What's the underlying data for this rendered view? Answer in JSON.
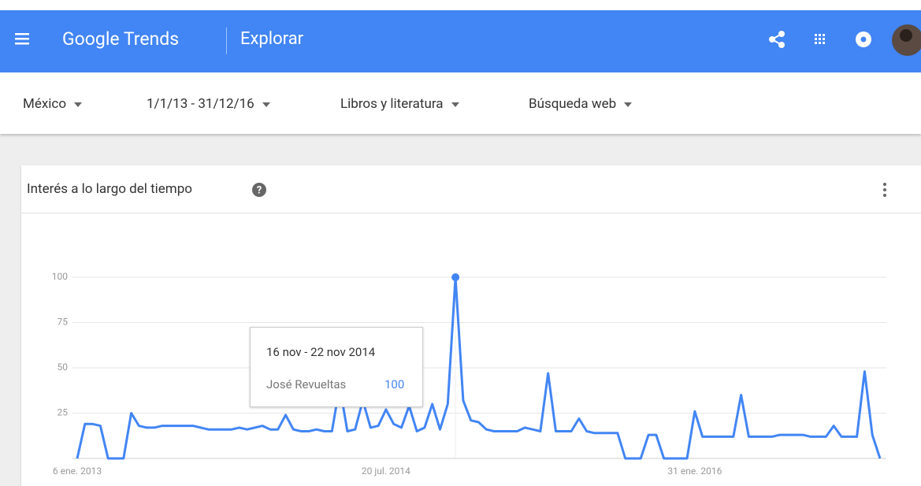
{
  "header": {
    "product": "Google Trends",
    "page": "Explorar"
  },
  "filters": [
    "México",
    "1/1/13 - 31/12/16",
    "Libros y literatura",
    "Búsqueda web"
  ],
  "card": {
    "title": "Interés a lo largo del tiempo"
  },
  "tooltip": {
    "date": "16 nov - 22 nov 2014",
    "series_name": "José Revueltas",
    "value": "100"
  },
  "chart_data": {
    "type": "line",
    "color": "#4285f4",
    "categories": [
      "6 ene. 2013",
      null,
      null,
      null,
      null,
      null,
      null,
      null,
      null,
      null,
      null,
      null,
      null,
      null,
      null,
      null,
      null,
      null,
      null,
      null,
      null,
      null,
      null,
      null,
      null,
      null,
      null,
      null,
      null,
      null,
      null,
      null,
      null,
      null,
      null,
      null,
      null,
      null,
      null,
      null,
      "20 jul. 2014",
      null,
      null,
      null,
      null,
      null,
      null,
      null,
      null,
      null,
      null,
      null,
      null,
      null,
      null,
      null,
      null,
      null,
      null,
      null,
      null,
      null,
      null,
      null,
      null,
      null,
      null,
      null,
      null,
      null,
      null,
      null,
      null,
      null,
      null,
      null,
      null,
      null,
      null,
      null,
      "31 ene. 2016",
      null,
      null,
      null,
      null,
      null,
      null,
      null,
      null,
      null,
      null,
      null,
      null,
      null,
      null,
      null,
      null,
      null,
      null,
      null,
      null,
      null,
      null,
      null,
      null
    ],
    "values": [
      0,
      19,
      19,
      18,
      0,
      0,
      0,
      25,
      18,
      17,
      17,
      18,
      18,
      18,
      18,
      18,
      17,
      16,
      16,
      16,
      16,
      17,
      16,
      17,
      18,
      16,
      16,
      24,
      16,
      15,
      15,
      16,
      15,
      15,
      40,
      15,
      16,
      32,
      17,
      18,
      27,
      19,
      17,
      29,
      15,
      17,
      30,
      16,
      30,
      100,
      32,
      21,
      20,
      16,
      15,
      15,
      15,
      15,
      17,
      16,
      15,
      47,
      15,
      15,
      15,
      22,
      15,
      14,
      14,
      14,
      14,
      0,
      0,
      0,
      13,
      13,
      0,
      0,
      0,
      0,
      26,
      12,
      12,
      12,
      12,
      12,
      35,
      12,
      12,
      12,
      12,
      13,
      13,
      13,
      13,
      12,
      12,
      12,
      18,
      12,
      12,
      12,
      48,
      13,
      0
    ],
    "ylim": [
      0,
      100
    ],
    "yticks": [
      25,
      50,
      75,
      100
    ],
    "grid": true
  }
}
